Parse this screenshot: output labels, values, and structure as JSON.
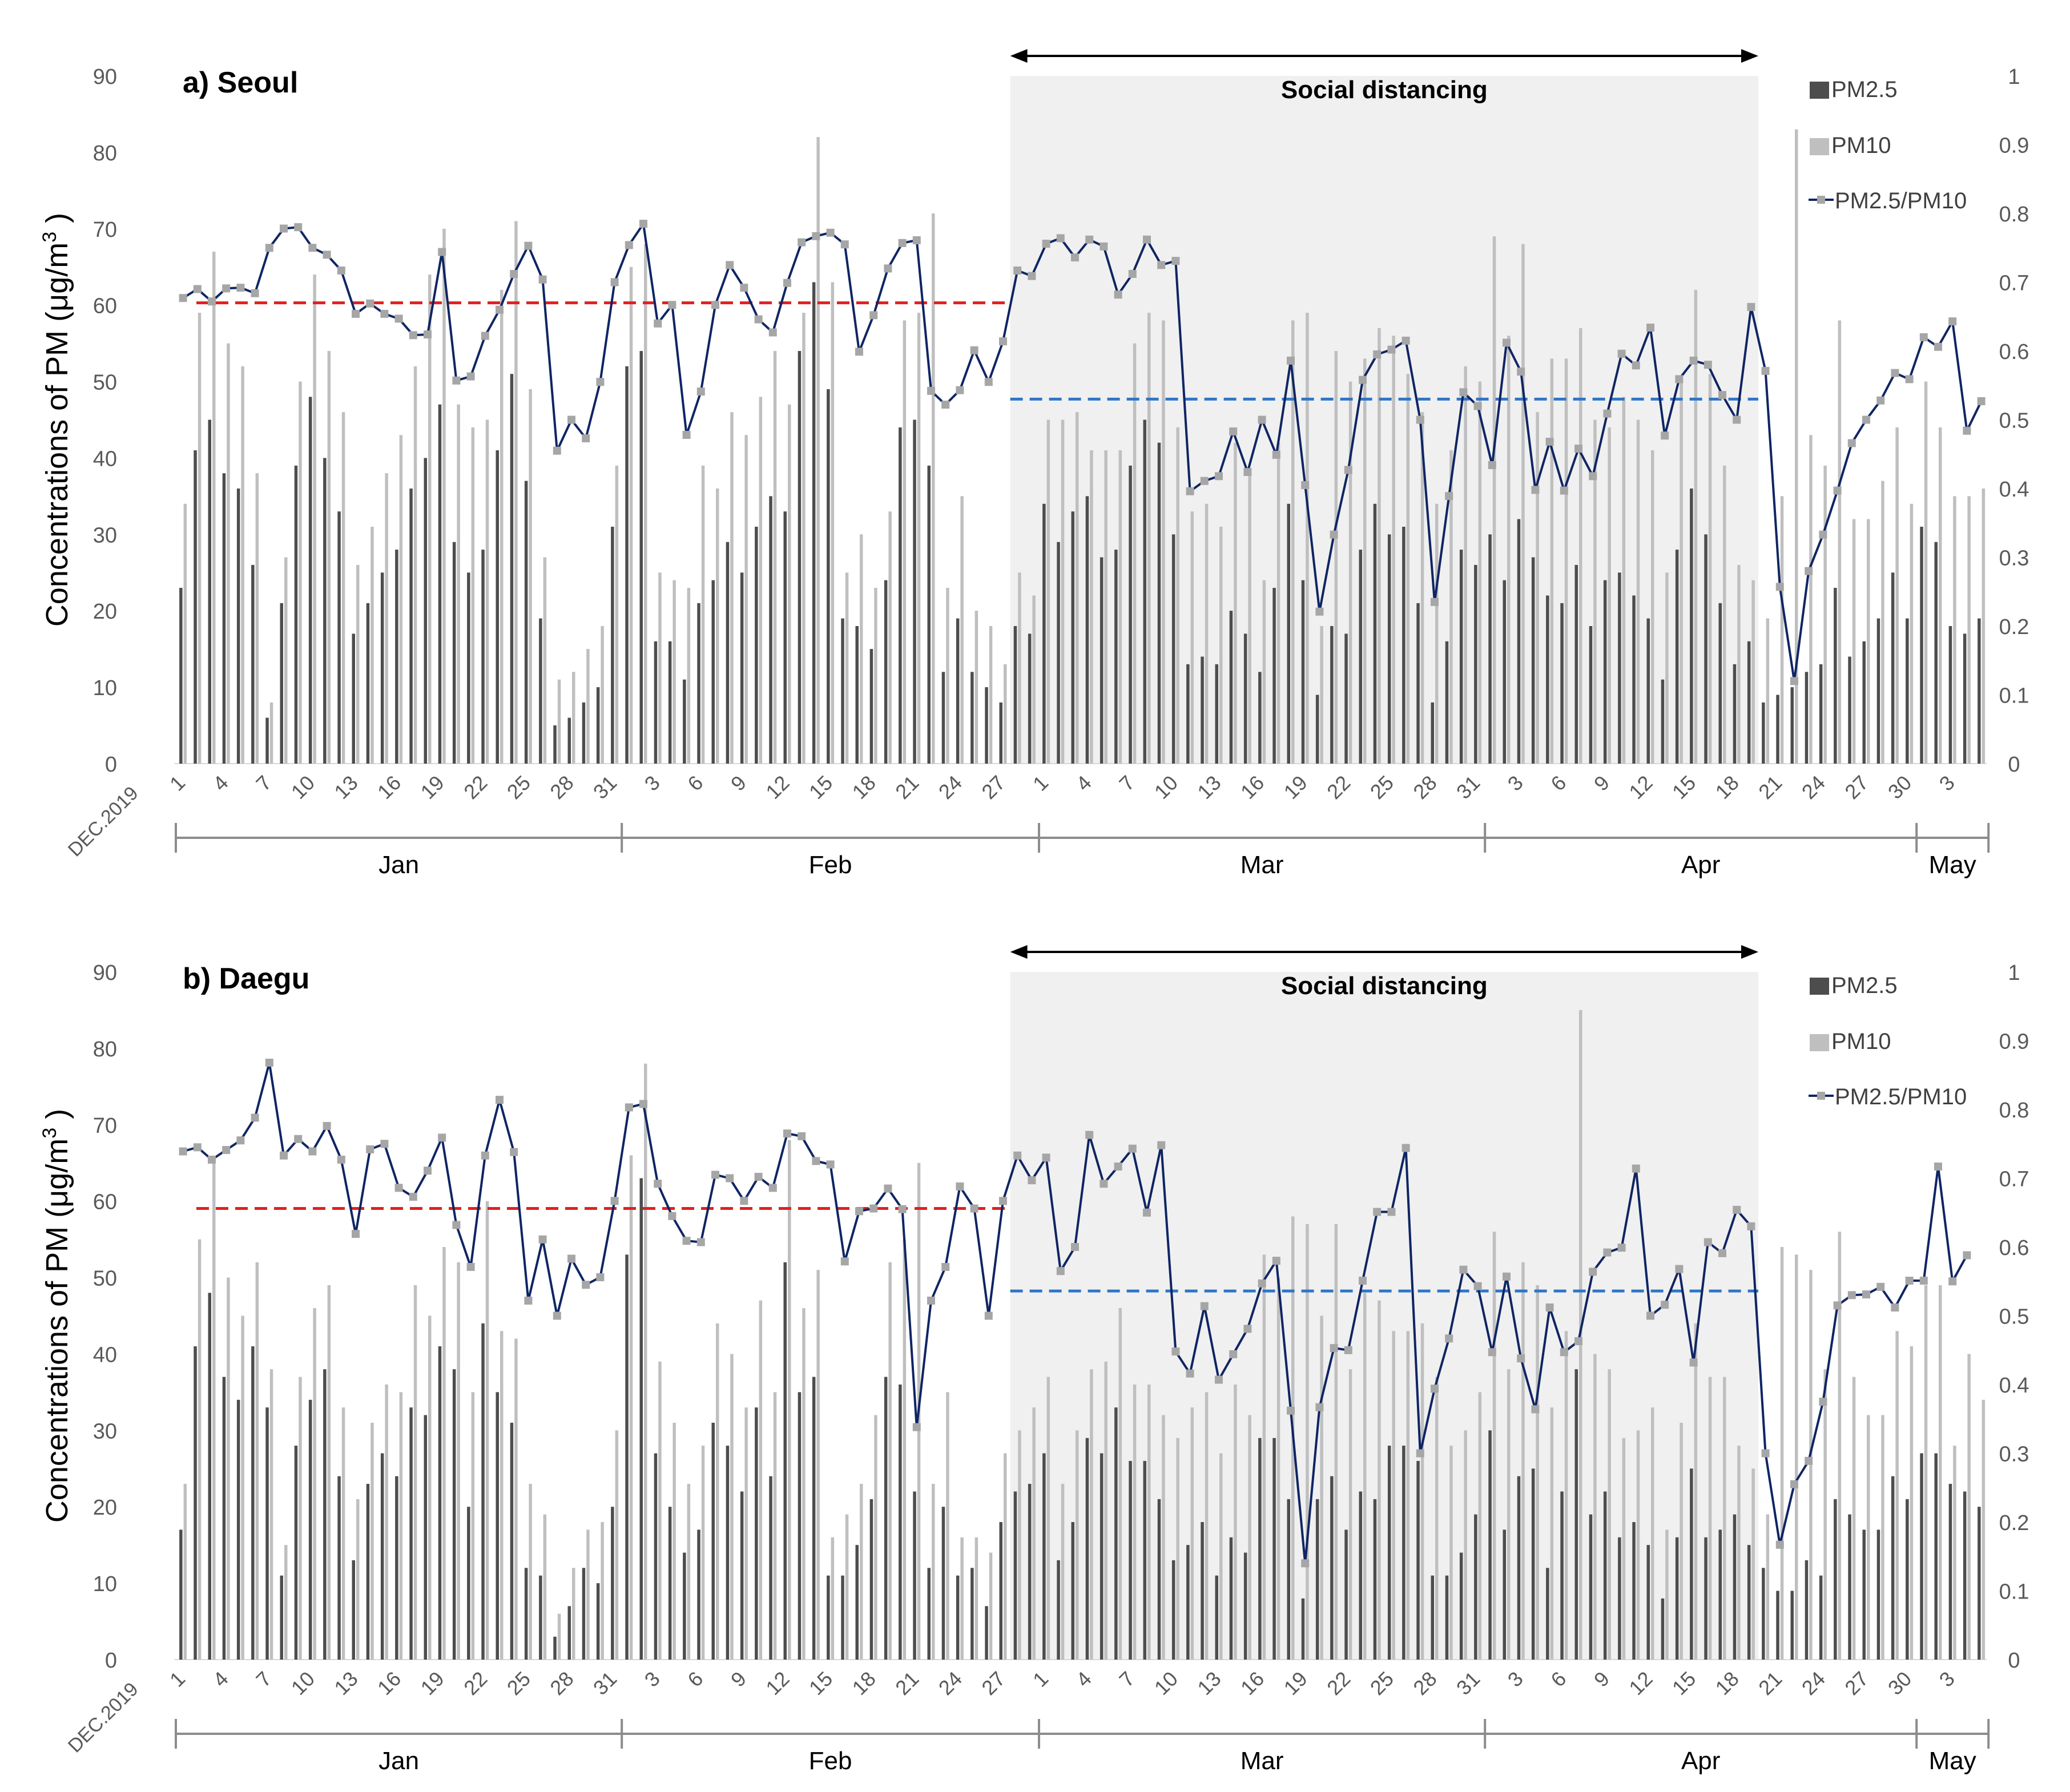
{
  "figure": {
    "y_axis_label": "Concentrations of PM (μg/m",
    "y_axis_label_sup": "3",
    "y_axis_label_end": " )",
    "start_label": "DEC.2019",
    "day_tick_labels": [
      "1",
      "4",
      "7",
      "10",
      "13",
      "16",
      "19",
      "22",
      "25",
      "28",
      "31",
      "3",
      "6",
      "9",
      "12",
      "15",
      "18",
      "21",
      "24",
      "27",
      "1",
      "4",
      "7",
      "10",
      "13",
      "16",
      "19",
      "22",
      "25",
      "28",
      "31",
      "3",
      "6",
      "9",
      "12",
      "15",
      "18",
      "21",
      "24",
      "27",
      "30",
      "3"
    ],
    "month_labels": [
      "Jan",
      "Feb",
      "Mar",
      "Apr",
      "May"
    ],
    "left_axis_ticks": [
      "0",
      "10",
      "20",
      "30",
      "40",
      "50",
      "60",
      "70",
      "80",
      "90"
    ],
    "right_axis_ticks": [
      "0",
      "0.1",
      "0.2",
      "0.3",
      "0.4",
      "0.5",
      "0.6",
      "0.7",
      "0.8",
      "0.9",
      "1"
    ],
    "social_distancing_label": "Social distancing",
    "legend": [
      "PM2.5",
      "PM10",
      "PM2.5/PM10"
    ],
    "colors": {
      "pm25": "#4d4d4d",
      "pm10": "#bfbfbf",
      "ratio_line": "#0f2563",
      "ratio_marker": "#a6a6a6",
      "before_mean": "#e02020",
      "during_mean": "#2f74c8",
      "shade": "#f0f0f0",
      "axis": "#8c8c8c"
    }
  },
  "chart_data": [
    {
      "type": "bar+line",
      "title": "a) Seoul",
      "x_label": "DEC.2019",
      "ylabel": "Concentrations of PM (μg/m3 )",
      "ylim": [
        0,
        90
      ],
      "y2lim": [
        0,
        1
      ],
      "social_distancing_days": [
        58,
        110
      ],
      "before_mean_ratio": 0.67,
      "during_mean_ratio": 0.53,
      "pm25": [
        23,
        41,
        45,
        38,
        36,
        26,
        6,
        21,
        39,
        48,
        40,
        33,
        17,
        21,
        25,
        28,
        36,
        40,
        47,
        29,
        25,
        28,
        41,
        51,
        37,
        19,
        5,
        6,
        8,
        10,
        31,
        52,
        54,
        16,
        16,
        11,
        21,
        24,
        29,
        25,
        31,
        35,
        33,
        54,
        63,
        49,
        19,
        18,
        15,
        24,
        44,
        45,
        39,
        12,
        19,
        12,
        10,
        8,
        18,
        17,
        34,
        29,
        33,
        35,
        27,
        28,
        39,
        45,
        42,
        30,
        13,
        14,
        13,
        20,
        17,
        12,
        23,
        34,
        24,
        9,
        18,
        17,
        28,
        34,
        30,
        31,
        21,
        8,
        16,
        28,
        26,
        30,
        24,
        32,
        27,
        22,
        21,
        26,
        18,
        24,
        25,
        22,
        19,
        11,
        28,
        36,
        30,
        21,
        13,
        16,
        8,
        9,
        10,
        12,
        13,
        23,
        14,
        16,
        19,
        25,
        19,
        31,
        29,
        18,
        17,
        19
      ],
      "pm10": [
        34,
        59,
        67,
        55,
        52,
        38,
        8,
        27,
        50,
        64,
        54,
        46,
        26,
        31,
        38,
        43,
        52,
        64,
        70,
        47,
        44,
        45,
        62,
        71,
        49,
        27,
        11,
        12,
        15,
        18,
        39,
        65,
        68,
        25,
        24,
        23,
        39,
        36,
        46,
        43,
        48,
        54,
        47,
        59,
        82,
        63,
        25,
        30,
        23,
        33,
        58,
        59,
        72,
        23,
        35,
        20,
        18,
        13,
        25,
        22,
        45,
        45,
        46,
        41,
        41,
        41,
        55,
        59,
        58,
        44,
        33,
        34,
        31,
        42,
        38,
        24,
        42,
        58,
        59,
        18,
        54,
        50,
        53,
        57,
        56,
        51,
        46,
        34,
        41,
        52,
        50,
        69,
        56,
        68,
        46,
        53,
        53,
        57,
        45,
        44,
        48,
        45,
        41,
        25,
        50,
        62,
        51,
        39,
        26,
        24,
        19,
        35,
        83,
        43,
        39,
        58,
        32,
        32,
        37,
        44,
        34,
        50,
        44,
        35,
        35,
        36
      ],
      "ratio": [
        0.677,
        0.69,
        0.672,
        0.691,
        0.692,
        0.684,
        0.75,
        0.778,
        0.78,
        0.75,
        0.74,
        0.717,
        0.654,
        0.669,
        0.654,
        0.647,
        0.623,
        0.624,
        0.744,
        0.557,
        0.563,
        0.622,
        0.66,
        0.712,
        0.753,
        0.704,
        0.455,
        0.5,
        0.473,
        0.555,
        0.7,
        0.754,
        0.785,
        0.64,
        0.667,
        0.478,
        0.541,
        0.667,
        0.725,
        0.692,
        0.646,
        0.627,
        0.699,
        0.758,
        0.767,
        0.772,
        0.755,
        0.599,
        0.652,
        0.72,
        0.757,
        0.761,
        0.542,
        0.522,
        0.543,
        0.601,
        0.555,
        0.614,
        0.717,
        0.709,
        0.756,
        0.764,
        0.736,
        0.762,
        0.752,
        0.682,
        0.712,
        0.762,
        0.725,
        0.731,
        0.396,
        0.411,
        0.418,
        0.483,
        0.424,
        0.5,
        0.449,
        0.586,
        0.405,
        0.221,
        0.333,
        0.427,
        0.558,
        0.595,
        0.602,
        0.615,
        0.5,
        0.235,
        0.389,
        0.54,
        0.52,
        0.434,
        0.612,
        0.57,
        0.398,
        0.468,
        0.397,
        0.458,
        0.418,
        0.509,
        0.596,
        0.579,
        0.634,
        0.477,
        0.559,
        0.586,
        0.58,
        0.536,
        0.5,
        0.664,
        0.571,
        0.257,
        0.12,
        0.28,
        0.333,
        0.397,
        0.466,
        0.5,
        0.528,
        0.568,
        0.559,
        0.62,
        0.606,
        0.643,
        0.484,
        0.527
      ]
    },
    {
      "type": "bar+line",
      "title": "b) Daegu",
      "x_label": "DEC.2019",
      "ylabel": "Concentrations of PM (μg/m3 )",
      "ylim": [
        0,
        90
      ],
      "y2lim": [
        0,
        1
      ],
      "social_distancing_days": [
        58,
        110
      ],
      "before_mean_ratio": 0.656,
      "during_mean_ratio": 0.536,
      "pm25": [
        17,
        41,
        48,
        37,
        34,
        41,
        33,
        11,
        28,
        34,
        38,
        24,
        13,
        23,
        27,
        24,
        33,
        32,
        41,
        38,
        20,
        44,
        35,
        31,
        12,
        11,
        3,
        7,
        12,
        10,
        20,
        53,
        63,
        27,
        20,
        14,
        17,
        31,
        28,
        22,
        33,
        24,
        52,
        35,
        37,
        11,
        11,
        15,
        21,
        37,
        36,
        22,
        12,
        20,
        11,
        12,
        7,
        18,
        22,
        23,
        27,
        13,
        18,
        29,
        27,
        33,
        26,
        26,
        21,
        13,
        15,
        18,
        11,
        16,
        14,
        29,
        29,
        21,
        8,
        21,
        24,
        17,
        22,
        21,
        28,
        28,
        26,
        11,
        11,
        14,
        19,
        30,
        17,
        24,
        25,
        12,
        22,
        38,
        19,
        22,
        16,
        18,
        15,
        8,
        16,
        25,
        16,
        17,
        19,
        15,
        12,
        9,
        9,
        13,
        11,
        21,
        19,
        17,
        17,
        24,
        21,
        27,
        27,
        23,
        22,
        20
      ],
      "pm10": [
        23,
        55,
        65,
        50,
        45,
        52,
        38,
        15,
        37,
        46,
        49,
        33,
        21,
        31,
        36,
        35,
        49,
        45,
        54,
        52,
        35,
        60,
        43,
        42,
        23,
        19,
        6,
        12,
        17,
        18,
        30,
        66,
        78,
        39,
        31,
        23,
        28,
        44,
        40,
        33,
        47,
        35,
        68,
        46,
        51,
        16,
        19,
        23,
        32,
        52,
        55,
        65,
        23,
        35,
        16,
        16,
        14,
        27,
        30,
        33,
        37,
        23,
        30,
        38,
        39,
        46,
        36,
        36,
        32,
        29,
        33,
        35,
        27,
        36,
        32,
        53,
        50,
        58,
        57,
        45,
        57,
        38,
        48,
        47,
        43,
        43,
        44,
        37,
        28,
        30,
        35,
        56,
        38,
        52,
        49,
        33,
        43,
        85,
        40,
        38,
        29,
        30,
        33,
        17,
        31,
        44,
        37,
        37,
        28,
        25,
        19,
        54,
        53,
        51,
        38,
        56,
        37,
        32,
        32,
        43,
        41,
        49,
        49,
        28,
        40,
        34
      ],
      "ratio": [
        0.739,
        0.745,
        0.727,
        0.741,
        0.755,
        0.788,
        0.868,
        0.733,
        0.757,
        0.739,
        0.776,
        0.727,
        0.619,
        0.742,
        0.75,
        0.686,
        0.673,
        0.711,
        0.759,
        0.632,
        0.571,
        0.733,
        0.814,
        0.738,
        0.522,
        0.611,
        0.5,
        0.583,
        0.545,
        0.556,
        0.667,
        0.803,
        0.808,
        0.692,
        0.645,
        0.609,
        0.607,
        0.705,
        0.7,
        0.667,
        0.702,
        0.686,
        0.765,
        0.761,
        0.725,
        0.72,
        0.579,
        0.652,
        0.656,
        0.685,
        0.655,
        0.338,
        0.522,
        0.571,
        0.688,
        0.656,
        0.5,
        0.667,
        0.733,
        0.697,
        0.73,
        0.565,
        0.6,
        0.763,
        0.692,
        0.717,
        0.743,
        0.65,
        0.748,
        0.448,
        0.416,
        0.514,
        0.407,
        0.444,
        0.481,
        0.547,
        0.58,
        0.362,
        0.14,
        0.367,
        0.453,
        0.45,
        0.551,
        0.651,
        0.651,
        0.744,
        0.3,
        0.394,
        0.467,
        0.567,
        0.543,
        0.447,
        0.557,
        0.438,
        0.364,
        0.512,
        0.447,
        0.463,
        0.564,
        0.592,
        0.599,
        0.714,
        0.5,
        0.516,
        0.568,
        0.432,
        0.607,
        0.591,
        0.654,
        0.63,
        0.3,
        0.167,
        0.255,
        0.289,
        0.375,
        0.515,
        0.53,
        0.531,
        0.542,
        0.512,
        0.551,
        0.551,
        0.717,
        0.55,
        0.588
      ]
    }
  ]
}
